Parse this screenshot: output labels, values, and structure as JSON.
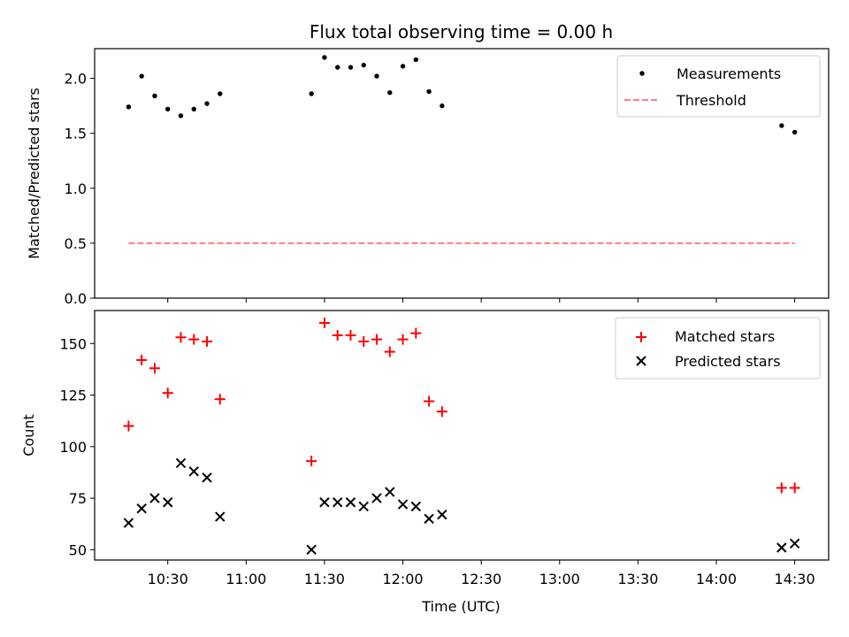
{
  "chart_data": [
    {
      "type": "scatter",
      "title": "Flux total observing time = 0.00 h",
      "xlabel": "",
      "ylabel": "Matched/Predicted stars",
      "ylim": [
        0,
        2.27
      ],
      "yticks": [
        "0.0",
        "0.5",
        "1.0",
        "1.5",
        "2.0"
      ],
      "legend_position": "top-right",
      "grid": false,
      "series": [
        {
          "name": "Measurements",
          "kind": "points",
          "color": "#000000",
          "x": [
            "10:15",
            "10:20",
            "10:25",
            "10:30",
            "10:35",
            "10:40",
            "10:45",
            "10:50",
            "11:25",
            "11:30",
            "11:35",
            "11:40",
            "11:45",
            "11:50",
            "11:55",
            "12:00",
            "12:05",
            "12:10",
            "12:15",
            "14:25",
            "14:30"
          ],
          "y": [
            1.74,
            2.02,
            1.84,
            1.72,
            1.66,
            1.72,
            1.77,
            1.86,
            1.86,
            2.19,
            2.1,
            2.1,
            2.12,
            2.02,
            1.87,
            2.11,
            2.17,
            1.88,
            1.75,
            1.57,
            1.51
          ]
        },
        {
          "name": "Threshold",
          "kind": "dashed-line",
          "color": "#ff7f7f",
          "x": [
            "10:15",
            "14:30"
          ],
          "y": [
            0.5,
            0.5
          ]
        }
      ]
    },
    {
      "type": "scatter",
      "title": "",
      "xlabel": "Time (UTC)",
      "ylabel": "Count",
      "ylim": [
        45,
        166
      ],
      "yticks": [
        "50",
        "75",
        "100",
        "125",
        "150"
      ],
      "xlim": [
        "10:02",
        "14:43"
      ],
      "xticks": [
        "10:30",
        "11:00",
        "11:30",
        "12:00",
        "12:30",
        "13:00",
        "13:30",
        "14:00",
        "14:30"
      ],
      "legend_position": "top-right",
      "grid": false,
      "series": [
        {
          "name": "Matched stars",
          "marker": "plus",
          "color": "#ff0000",
          "x": [
            "10:15",
            "10:20",
            "10:25",
            "10:30",
            "10:35",
            "10:40",
            "10:45",
            "10:50",
            "11:25",
            "11:30",
            "11:35",
            "11:40",
            "11:45",
            "11:50",
            "11:55",
            "12:00",
            "12:05",
            "12:10",
            "12:15",
            "14:25",
            "14:30"
          ],
          "y": [
            110,
            142,
            138,
            126,
            153,
            152,
            151,
            123,
            93,
            160,
            154,
            154,
            151,
            152,
            146,
            152,
            155,
            122,
            117,
            80,
            80
          ]
        },
        {
          "name": "Predicted stars",
          "marker": "x",
          "color": "#000000",
          "x": [
            "10:15",
            "10:20",
            "10:25",
            "10:30",
            "10:35",
            "10:40",
            "10:45",
            "10:50",
            "11:25",
            "11:30",
            "11:35",
            "11:40",
            "11:45",
            "11:50",
            "11:55",
            "12:00",
            "12:05",
            "12:10",
            "12:15",
            "14:25",
            "14:30"
          ],
          "y": [
            63,
            70,
            75,
            73,
            92,
            88,
            85,
            66,
            50,
            73,
            73,
            73,
            71,
            75,
            78,
            72,
            71,
            65,
            67,
            51,
            53
          ]
        }
      ]
    }
  ]
}
